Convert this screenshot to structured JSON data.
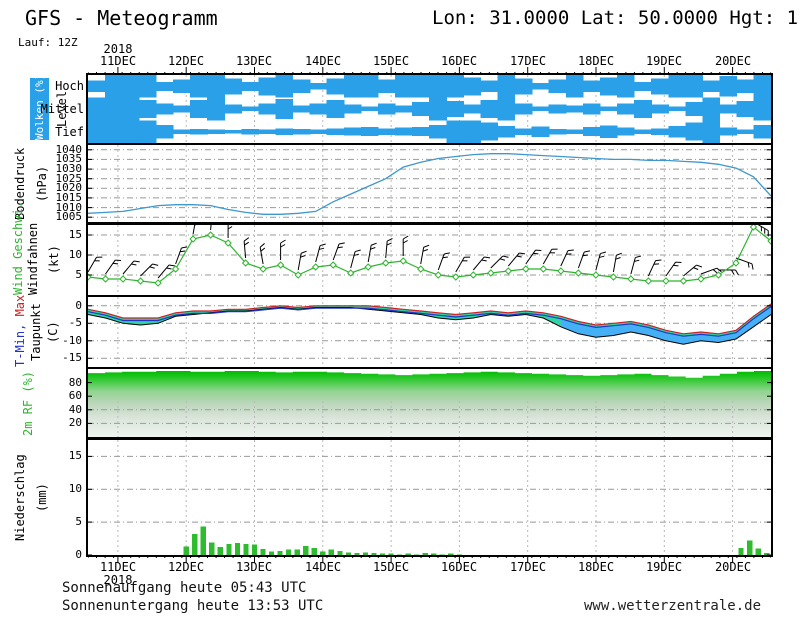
{
  "header": {
    "title": "GFS - Meteogramm",
    "location": "Lon: 31.0000 Lat: 50.0000 Hgt: 1",
    "run_label": "Lauf: 12Z"
  },
  "x_axis": {
    "year": "2018",
    "dates": [
      "11DEC",
      "12DEC",
      "13DEC",
      "14DEC",
      "15DEC",
      "16DEC",
      "17DEC",
      "18DEC",
      "19DEC",
      "20DEC"
    ]
  },
  "footer": {
    "sunrise": "Sonnenaufgang heute 05:43 UTC",
    "sunset": "Sonnenuntergang heute 13:53 UTC",
    "watermark": "www.wetterzentrale.de"
  },
  "colors": {
    "cloud_blue": "#29A0E8",
    "pressure_line": "#3E97CE",
    "wind_green": "#2DB52D",
    "temp_max_red": "#CC2222",
    "temp_min_blue": "#2233CC",
    "dewpoint_black": "#000000",
    "spread_teal": "#2FD3A6",
    "spread_blue": "#45B0F5",
    "rh_green": "#00BB00",
    "precip_green": "#2EBB2E",
    "grid_gray": "#AAAAAA"
  },
  "chart_data": [
    {
      "type": "heatmap",
      "name": "cloud-cover",
      "ylabel": "Wolken (%)",
      "ylabel2": "Level",
      "levels": [
        {
          "label": "Hoch",
          "cover": [
            0.5,
            1,
            1,
            1,
            0.4,
            0.6,
            1,
            1,
            0.7,
            0.4,
            0.8,
            1,
            0.6,
            0.3,
            0.7,
            1,
            1,
            0.6,
            1,
            1,
            1,
            1,
            0.8,
            0.5,
            1,
            0.7,
            0.3,
            0.6,
            1,
            0.5,
            0.8,
            1,
            0.4,
            0.7,
            1,
            1,
            0.5,
            0.9,
            0.6,
            1
          ]
        },
        {
          "label": "Mittel",
          "cover": [
            1,
            1,
            1,
            0.8,
            0.5,
            0.3,
            0.8,
            1,
            0.4,
            0.2,
            0.5,
            0.9,
            0.3,
            0.5,
            0.8,
            0.4,
            0.2,
            0.5,
            0.3,
            0.6,
            1,
            0.7,
            0.4,
            0.8,
            1,
            0.5,
            0.2,
            0.4,
            0.3,
            0.5,
            0.2,
            0.5,
            0.8,
            0.4,
            0.2,
            0.6,
            1,
            0.4,
            0.7,
            1
          ]
        },
        {
          "label": "Tief",
          "cover": [
            1,
            1,
            1,
            1,
            0.6,
            0.2,
            0.25,
            0.2,
            0.15,
            0.25,
            0.2,
            0.3,
            0.25,
            0.2,
            0.3,
            0.35,
            0.4,
            0.3,
            0.35,
            0.4,
            0.6,
            1,
            1,
            0.8,
            0.5,
            0.3,
            0.45,
            0.25,
            0.2,
            0.4,
            0.55,
            0.35,
            0.2,
            0.3,
            0.5,
            0.8,
            1,
            0.35,
            0.2,
            0.6
          ]
        }
      ]
    },
    {
      "type": "line",
      "name": "surface-pressure",
      "ylabel": "Bodendruck",
      "units": "(hPa)",
      "ylim": [
        1002.5,
        1042.5
      ],
      "yticks": [
        1005,
        1010,
        1015,
        1020,
        1025,
        1030,
        1035,
        1040
      ],
      "values": [
        1007,
        1007.5,
        1008,
        1009.5,
        1011,
        1011.5,
        1011.5,
        1011,
        1009,
        1007.5,
        1006.5,
        1006.5,
        1007,
        1008,
        1013,
        1017,
        1021,
        1025,
        1031,
        1033.5,
        1035.5,
        1036.5,
        1037.5,
        1038,
        1038,
        1037.5,
        1037,
        1036.5,
        1036,
        1035.5,
        1035,
        1035,
        1034.5,
        1034.5,
        1034,
        1033.5,
        1032.5,
        1030.5,
        1026,
        1016
      ]
    },
    {
      "type": "wind",
      "name": "wind",
      "ylabel_speed": "Wind Geschwi.",
      "ylabel_barbs": "Windfahnen",
      "units": "(kt)",
      "ylim": [
        0,
        17.5
      ],
      "yticks": [
        5,
        10,
        15
      ],
      "speed": [
        4.5,
        4,
        4,
        3.5,
        3,
        6.5,
        14,
        15,
        13,
        8,
        6.5,
        7.5,
        5,
        7,
        7.5,
        5.5,
        7,
        8,
        8.5,
        6.5,
        5,
        4.5,
        5,
        5.5,
        6,
        6.5,
        6.5,
        6,
        5.5,
        5,
        4.5,
        4,
        3.5,
        3.5,
        3.5,
        4,
        5,
        8,
        17,
        13.5
      ],
      "direction_deg": [
        30,
        35,
        40,
        45,
        40,
        20,
        10,
        5,
        0,
        355,
        350,
        0,
        10,
        15,
        20,
        15,
        10,
        5,
        0,
        10,
        20,
        30,
        40,
        45,
        40,
        35,
        30,
        25,
        20,
        15,
        10,
        15,
        25,
        35,
        50,
        70,
        90,
        110,
        120,
        115
      ]
    },
    {
      "type": "tempdew",
      "name": "temperature",
      "label_min": "T-Min, ",
      "label_max": "Max",
      "ylabel_dew": "Taupunkt",
      "units": "(C)",
      "ylim": [
        -17.5,
        2.5
      ],
      "yticks": [
        0,
        -5,
        -10,
        -15
      ],
      "temperature": [
        -1,
        -2,
        -3.5,
        -3.5,
        -3.5,
        -2,
        -1.5,
        -1.5,
        -1,
        -1,
        -0.5,
        0,
        -0.5,
        0,
        0,
        0,
        0,
        -0.5,
        -1,
        -1.5,
        -2,
        -2.5,
        -2,
        -1.5,
        -2,
        -1.5,
        -2,
        -3,
        -4.5,
        -5.5,
        -5,
        -4.5,
        -5.5,
        -7,
        -8,
        -7.5,
        -8,
        -7,
        -3,
        0.5
      ],
      "dewpoint": [
        -2.5,
        -3.5,
        -5,
        -5.5,
        -5,
        -3,
        -2.5,
        -2,
        -1.5,
        -1.5,
        -1,
        -0.5,
        -1,
        -0.5,
        -0.5,
        -0.5,
        -1,
        -1.5,
        -2,
        -2.5,
        -3.5,
        -4,
        -3.5,
        -2.5,
        -3,
        -2.5,
        -3.5,
        -6,
        -8,
        -9,
        -8.5,
        -7.5,
        -8.5,
        -10,
        -11,
        -10,
        -10.5,
        -9.5,
        -6,
        -2.5
      ]
    },
    {
      "type": "area",
      "name": "relative-humidity",
      "ylabel": "2m RF (%)",
      "ylim": [
        0,
        100
      ],
      "yticks": [
        20,
        40,
        60,
        80
      ],
      "values": [
        94,
        95,
        96,
        96,
        97,
        97,
        96,
        96,
        97,
        97,
        96,
        95,
        96,
        96,
        95,
        94,
        93,
        92,
        91,
        92,
        93,
        94,
        95,
        96,
        95,
        94,
        93,
        92,
        91,
        90,
        91,
        92,
        93,
        91,
        89,
        87,
        90,
        93,
        96,
        97
      ]
    },
    {
      "type": "bar",
      "name": "precipitation",
      "ylabel": "Niederschlag",
      "units": "(mm)",
      "ylim": [
        0,
        17.5
      ],
      "yticks": [
        0,
        5,
        10,
        15
      ],
      "values": [
        0,
        0,
        0,
        0,
        0,
        0,
        0,
        0,
        0,
        0,
        0,
        1.3,
        3.2,
        4.3,
        1.9,
        1.2,
        1.7,
        1.8,
        1.7,
        1.6,
        0.9,
        0.5,
        0.6,
        0.8,
        0.8,
        1.4,
        1.1,
        0.5,
        0.8,
        0.6,
        0.4,
        0.3,
        0.4,
        0.3,
        0.2,
        0.2,
        0.1,
        0.2,
        0.1,
        0.3,
        0.2,
        0.1,
        0.2,
        0.1,
        0,
        0,
        0,
        0,
        0,
        0,
        0,
        0,
        0,
        0,
        0,
        0,
        0,
        0,
        0,
        0,
        0,
        0,
        0,
        0,
        0,
        0,
        0,
        0,
        0,
        0,
        0,
        0,
        0,
        0,
        0,
        0,
        1.1,
        2.2,
        1.0,
        0.3
      ]
    }
  ]
}
